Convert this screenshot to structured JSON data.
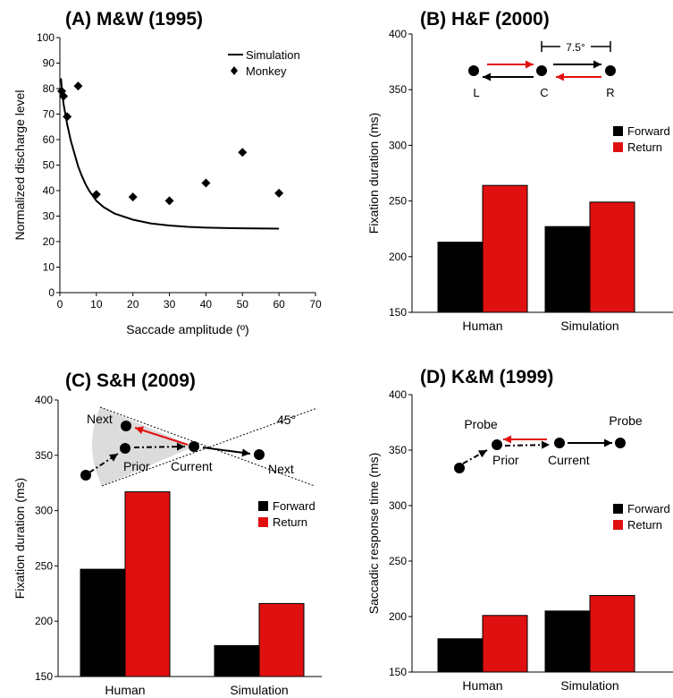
{
  "chart_data": [
    {
      "panel": "A",
      "type": "line+scatter",
      "title": "(A) M&W (1995)",
      "xlabel": "Saccade amplitude (º)",
      "ylabel": "Normalized discharge level",
      "xlim": [
        0,
        70
      ],
      "ylim": [
        0,
        100
      ],
      "xticks": [
        "0",
        "10",
        "20",
        "30",
        "40",
        "50",
        "60",
        "70"
      ],
      "yticks": [
        "0",
        "10",
        "20",
        "30",
        "40",
        "50",
        "60",
        "70",
        "80",
        "90",
        "100"
      ],
      "legend": [
        "Simulation",
        "Monkey"
      ],
      "legend_position": "top-right",
      "series": [
        {
          "name": "Simulation",
          "kind": "line",
          "x": [
            0.3,
            0.6,
            1,
            1.5,
            2,
            3,
            4,
            5,
            6,
            7,
            8,
            10,
            12,
            15,
            20,
            25,
            30,
            35,
            40,
            50,
            60
          ],
          "y": [
            84,
            79,
            74,
            70,
            66,
            59.5,
            54.5,
            49.5,
            45.8,
            42.6,
            40,
            36,
            33.5,
            31,
            28.6,
            27.1,
            26.3,
            25.8,
            25.5,
            25.2,
            25.1
          ]
        },
        {
          "name": "Monkey",
          "kind": "scatter",
          "x": [
            0.5,
            1,
            2,
            5,
            10,
            20,
            30,
            40,
            50,
            60
          ],
          "y": [
            79,
            77,
            69,
            81,
            38.5,
            37.5,
            36,
            43,
            55,
            39
          ]
        }
      ]
    },
    {
      "panel": "B",
      "type": "bar",
      "title": "(B) H&F (2000)",
      "ylabel": "Fixation duration (ms)",
      "ylim": [
        150,
        400
      ],
      "yticks": [
        "150",
        "200",
        "250",
        "300",
        "350",
        "400"
      ],
      "categories": [
        "Human",
        "Simulation"
      ],
      "legend": [
        "Forward",
        "Return"
      ],
      "legend_position": "right",
      "series": [
        {
          "name": "Forward",
          "values": [
            213,
            227
          ]
        },
        {
          "name": "Return",
          "values": [
            264,
            249
          ]
        }
      ],
      "inset_labels": {
        "angle": "7.5°",
        "left": "L",
        "center": "C",
        "right": "R"
      }
    },
    {
      "panel": "C",
      "type": "bar",
      "title": "(C) S&H (2009)",
      "ylabel": "Fixation duration (ms)",
      "ylim": [
        150,
        400
      ],
      "yticks": [
        "150",
        "200",
        "250",
        "300",
        "350",
        "400"
      ],
      "categories": [
        "Human",
        "Simulation"
      ],
      "legend": [
        "Forward",
        "Return"
      ],
      "legend_position": "right",
      "series": [
        {
          "name": "Forward",
          "values": [
            247,
            178
          ]
        },
        {
          "name": "Return",
          "values": [
            317,
            216
          ]
        }
      ],
      "inset_labels": {
        "next_top": "Next",
        "next_right": "Next",
        "prior": "Prior",
        "current": "Current",
        "angle": "45°"
      }
    },
    {
      "panel": "D",
      "type": "bar",
      "title": "(D) K&M (1999)",
      "ylabel": "Saccadic response time (ms)",
      "ylim": [
        150,
        400
      ],
      "yticks": [
        "150",
        "200",
        "250",
        "300",
        "350",
        "400"
      ],
      "categories": [
        "Human",
        "Simulation"
      ],
      "legend": [
        "Forward",
        "Return"
      ],
      "legend_position": "right",
      "series": [
        {
          "name": "Forward",
          "values": [
            180,
            205
          ]
        },
        {
          "name": "Return",
          "values": [
            201,
            219
          ]
        }
      ],
      "inset_labels": {
        "probe_left": "Probe",
        "probe_right": "Probe",
        "prior": "Prior",
        "current": "Current"
      }
    }
  ],
  "colors": {
    "forward": "#000000",
    "return": "#e01010",
    "arrow_red": "#e01010",
    "cone": "#dcdcdc"
  }
}
